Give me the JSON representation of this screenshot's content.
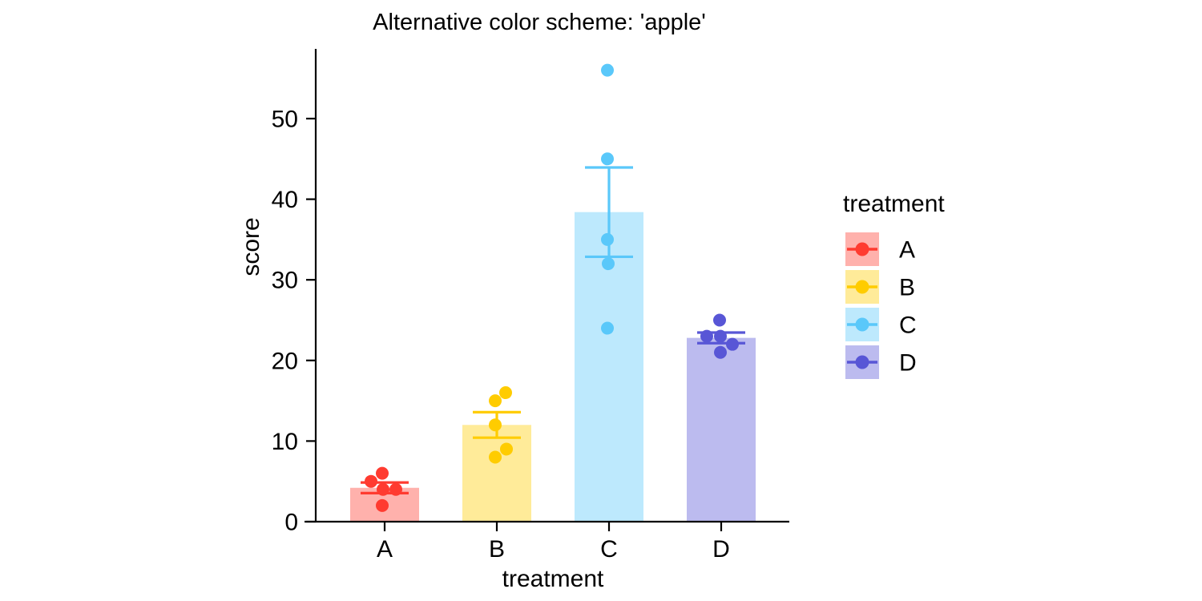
{
  "chart_data": {
    "type": "bar",
    "title": "Alternative color scheme: 'apple'",
    "xlabel": "treatment",
    "ylabel": "score",
    "categories": [
      "A",
      "B",
      "C",
      "D"
    ],
    "yticks": [
      0,
      10,
      20,
      30,
      40,
      50
    ],
    "ylim": [
      0,
      58
    ],
    "grid": false,
    "error_bars": "mean ± SEM",
    "bar_fill_alpha": 0.4,
    "legend": {
      "title": "treatment",
      "position": "right",
      "entries": [
        "A",
        "B",
        "C",
        "D"
      ]
    },
    "series": [
      {
        "name": "A",
        "color": "#FF3B30",
        "fill": "#FFB1AC",
        "mean": 4.2,
        "sem": 0.66,
        "values": [
          6,
          5,
          4,
          4,
          2
        ],
        "jitter_dx": [
          -3,
          -17,
          -2,
          14,
          -3
        ]
      },
      {
        "name": "B",
        "color": "#FFCC00",
        "fill": "#FFEB99",
        "mean": 12.0,
        "sem": 1.58,
        "values": [
          16,
          15,
          12,
          9,
          8
        ],
        "jitter_dx": [
          11,
          -2,
          -2,
          12,
          -2
        ]
      },
      {
        "name": "C",
        "color": "#5AC8FA",
        "fill": "#BDE9FD",
        "mean": 38.4,
        "sem": 5.54,
        "values": [
          56,
          45,
          35,
          32,
          24
        ],
        "jitter_dx": [
          -2,
          -2,
          -2,
          -1,
          -2
        ]
      },
      {
        "name": "D",
        "color": "#5856D6",
        "fill": "#BCBBEF",
        "mean": 22.8,
        "sem": 0.66,
        "values": [
          25,
          23,
          23,
          22,
          21
        ],
        "jitter_dx": [
          -2,
          -18,
          -1,
          14,
          -1
        ]
      }
    ],
    "axis_color": "#000000"
  }
}
